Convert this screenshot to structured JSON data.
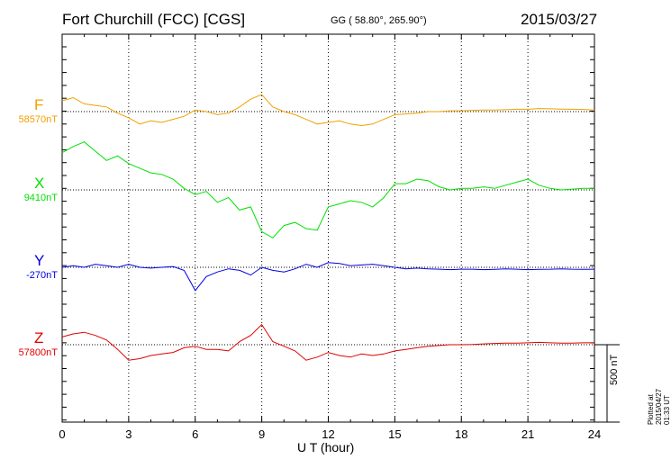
{
  "header": {
    "station": "Fort Churchill (FCC)  [CGS]",
    "coords": "GG ( 58.80°, 265.90°)",
    "date": "2015/03/27"
  },
  "plotted": "Plotted at 2015/04/27 01:33 UT",
  "chart_data": {
    "type": "line",
    "title": "Fort Churchill (FCC)  [CGS]",
    "xlabel": "U T (hour)",
    "xlim": [
      0,
      24
    ],
    "xticks": [
      0,
      3,
      6,
      9,
      12,
      15,
      18,
      21,
      24
    ],
    "xtick_labels": [
      "0",
      "3",
      "6",
      "9",
      "12",
      "15",
      "18",
      "21",
      "24"
    ],
    "grid": true,
    "unit": "nT",
    "scale_bar": {
      "value": 500,
      "label": "500 nT"
    },
    "series": [
      {
        "name": "F",
        "baseline_label": "58570nT",
        "baseline": 58570,
        "color": "#f0a000",
        "x": [
          0,
          0.5,
          1,
          1.5,
          2,
          2.5,
          3,
          3.5,
          4,
          4.5,
          5,
          5.5,
          6,
          6.5,
          7,
          7.5,
          8,
          8.5,
          9,
          9.5,
          10,
          10.5,
          11,
          11.5,
          12,
          12.5,
          13,
          13.5,
          14,
          14.5,
          15,
          15.5,
          16,
          16.5,
          17,
          17.5,
          18,
          18.5,
          19,
          19.5,
          20,
          20.5,
          21,
          21.5,
          22,
          22.5,
          23,
          23.5,
          24
        ],
        "values": [
          58640,
          58660,
          58620,
          58610,
          58600,
          58560,
          58530,
          58490,
          58510,
          58500,
          58520,
          58540,
          58580,
          58570,
          58550,
          58560,
          58600,
          58650,
          58680,
          58600,
          58570,
          58550,
          58520,
          58490,
          58500,
          58510,
          58490,
          58480,
          58490,
          58520,
          58550,
          58555,
          58560,
          58570,
          58570,
          58575,
          58575,
          58578,
          58580,
          58580,
          58582,
          58585,
          58585,
          58590,
          58588,
          58586,
          58585,
          58584,
          58580
        ]
      },
      {
        "name": "X",
        "baseline_label": "9410nT",
        "baseline": 9410,
        "color": "#00e000",
        "x": [
          0,
          0.5,
          1,
          1.5,
          2,
          2.5,
          3,
          3.5,
          4,
          4.5,
          5,
          5.5,
          6,
          6.5,
          7,
          7.5,
          8,
          8.5,
          9,
          9.5,
          10,
          10.5,
          11,
          11.5,
          12,
          12.5,
          13,
          13.5,
          14,
          14.5,
          15,
          15.5,
          16,
          16.5,
          17,
          17.5,
          18,
          18.5,
          19,
          19.5,
          20,
          20.5,
          21,
          21.5,
          22,
          22.5,
          23,
          23.5,
          24
        ],
        "values": [
          9650,
          9690,
          9720,
          9660,
          9600,
          9630,
          9580,
          9550,
          9520,
          9510,
          9480,
          9420,
          9380,
          9400,
          9330,
          9360,
          9280,
          9300,
          9140,
          9100,
          9180,
          9200,
          9160,
          9150,
          9300,
          9320,
          9340,
          9330,
          9300,
          9360,
          9450,
          9450,
          9480,
          9470,
          9430,
          9410,
          9420,
          9420,
          9430,
          9420,
          9440,
          9460,
          9480,
          9440,
          9420,
          9410,
          9415,
          9420,
          9420
        ]
      },
      {
        "name": "Y",
        "baseline_label": "-270nT",
        "baseline": -270,
        "color": "#0000e0",
        "x": [
          0,
          0.5,
          1,
          1.5,
          2,
          2.5,
          3,
          3.5,
          4,
          4.5,
          5,
          5.5,
          6,
          6.5,
          7,
          7.5,
          8,
          8.5,
          9,
          9.5,
          10,
          10.5,
          11,
          11.5,
          12,
          12.5,
          13,
          13.5,
          14,
          14.5,
          15,
          15.5,
          16,
          16.5,
          17,
          17.5,
          18,
          18.5,
          19,
          19.5,
          20,
          20.5,
          21,
          21.5,
          22,
          22.5,
          23,
          23.5,
          24
        ],
        "values": [
          -270,
          -260,
          -270,
          -250,
          -260,
          -270,
          -250,
          -270,
          -275,
          -270,
          -265,
          -290,
          -420,
          -330,
          -300,
          -280,
          -290,
          -320,
          -270,
          -290,
          -300,
          -280,
          -250,
          -270,
          -240,
          -245,
          -260,
          -255,
          -250,
          -260,
          -270,
          -280,
          -275,
          -280,
          -282,
          -285,
          -282,
          -282,
          -285,
          -283,
          -280,
          -282,
          -285,
          -283,
          -282,
          -280,
          -282,
          -283,
          -282
        ]
      },
      {
        "name": "Z",
        "baseline_label": "57800nT",
        "baseline": 57800,
        "color": "#e00000",
        "x": [
          0,
          0.5,
          1,
          1.5,
          2,
          2.5,
          3,
          3.5,
          4,
          4.5,
          5,
          5.5,
          6,
          6.5,
          7,
          7.5,
          8,
          8.5,
          9,
          9.5,
          10,
          10.5,
          11,
          11.5,
          12,
          12.5,
          13,
          13.5,
          14,
          14.5,
          15,
          15.5,
          16,
          16.5,
          17,
          17.5,
          18,
          18.5,
          19,
          19.5,
          20,
          20.5,
          21,
          21.5,
          22,
          22.5,
          23,
          23.5,
          24
        ],
        "values": [
          57850,
          57870,
          57880,
          57860,
          57830,
          57770,
          57700,
          57710,
          57730,
          57740,
          57750,
          57780,
          57790,
          57770,
          57770,
          57760,
          57820,
          57860,
          57930,
          57820,
          57790,
          57760,
          57700,
          57720,
          57750,
          57730,
          57720,
          57740,
          57730,
          57740,
          57760,
          57770,
          57780,
          57790,
          57795,
          57800,
          57800,
          57802,
          57805,
          57808,
          57810,
          57810,
          57812,
          57815,
          57812,
          57810,
          57810,
          57812,
          57812
        ]
      }
    ]
  }
}
